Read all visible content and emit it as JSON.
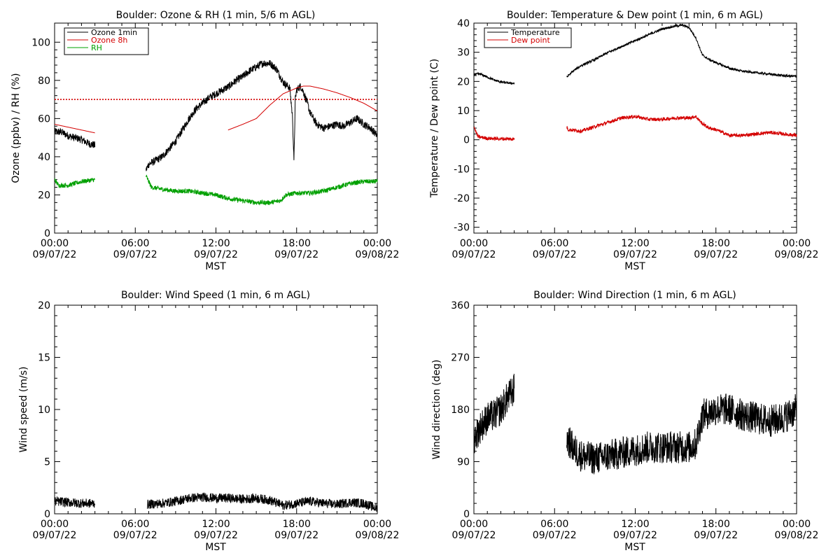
{
  "chart_data": [
    {
      "id": "ozone_rh",
      "type": "line",
      "title": "Boulder: Ozone & RH (1 min, 5/6 m AGL)",
      "xlabel": "MST",
      "ylabel": "Ozone (ppbv) / RH (%)",
      "xlim": [
        0,
        24
      ],
      "ylim": [
        0,
        110
      ],
      "xticks": [
        {
          "x": 0,
          "time": "00:00",
          "date": "09/07/22"
        },
        {
          "x": 6,
          "time": "06:00",
          "date": "09/07/22"
        },
        {
          "x": 12,
          "time": "12:00",
          "date": "09/07/22"
        },
        {
          "x": 18,
          "time": "18:00",
          "date": "09/07/22"
        },
        {
          "x": 24,
          "time": "00:00",
          "date": "09/08/22"
        }
      ],
      "yticks": [
        "0",
        "20",
        "40",
        "60",
        "80",
        "100"
      ],
      "legend_position": "top-left",
      "hline": {
        "y": 70,
        "color": "#d40000",
        "style": "dotted"
      },
      "series": [
        {
          "name": "Ozone 1min",
          "color": "#000000",
          "noise": 2.0,
          "segments": [
            [
              [
                0,
                53
              ],
              [
                0.5,
                53
              ],
              [
                1,
                51
              ],
              [
                1.5,
                50
              ],
              [
                2,
                49
              ],
              [
                2.5,
                47
              ],
              [
                3,
                46
              ]
            ],
            [
              [
                6.8,
                33
              ],
              [
                7,
                36
              ],
              [
                7.5,
                38
              ],
              [
                8,
                40
              ],
              [
                8.5,
                44
              ],
              [
                9,
                48
              ],
              [
                9.5,
                54
              ],
              [
                10,
                60
              ],
              [
                10.5,
                65
              ],
              [
                11,
                68
              ],
              [
                11.5,
                71
              ],
              [
                12,
                73
              ],
              [
                12.5,
                75
              ],
              [
                13,
                77
              ],
              [
                13.5,
                80
              ],
              [
                14,
                82
              ],
              [
                14.5,
                85
              ],
              [
                15,
                87
              ],
              [
                15.5,
                89
              ],
              [
                16,
                89
              ],
              [
                16.5,
                86
              ],
              [
                17,
                79
              ],
              [
                17.5,
                76
              ],
              [
                17.7,
                60
              ],
              [
                17.8,
                37
              ],
              [
                17.9,
                70
              ],
              [
                18,
                75
              ],
              [
                18.3,
                77
              ],
              [
                18.5,
                74
              ],
              [
                18.8,
                68
              ],
              [
                19,
                63
              ],
              [
                19.5,
                57
              ],
              [
                20,
                55
              ],
              [
                20.5,
                56
              ],
              [
                21,
                57
              ],
              [
                21.5,
                56
              ],
              [
                22,
                58
              ],
              [
                22.5,
                60
              ],
              [
                23,
                57
              ],
              [
                23.5,
                55
              ],
              [
                24,
                51
              ]
            ]
          ]
        },
        {
          "name": "Ozone 8h",
          "color": "#d40000",
          "noise": 0,
          "segments": [
            [
              [
                0,
                57
              ],
              [
                1,
                55.5
              ],
              [
                2,
                54
              ],
              [
                3,
                52.5
              ]
            ],
            [
              [
                12.9,
                54
              ],
              [
                14,
                57
              ],
              [
                15,
                60
              ],
              [
                16,
                67
              ],
              [
                17,
                73
              ],
              [
                18,
                76
              ],
              [
                18.5,
                77
              ],
              [
                19,
                77
              ],
              [
                20,
                75.5
              ],
              [
                21,
                73.5
              ],
              [
                22,
                71
              ],
              [
                23,
                68
              ],
              [
                24,
                64
              ]
            ]
          ]
        },
        {
          "name": "RH",
          "color": "#00a000",
          "noise": 1.2,
          "segments": [
            [
              [
                0,
                28
              ],
              [
                0.3,
                25
              ],
              [
                1,
                25
              ],
              [
                2,
                27
              ],
              [
                3,
                28
              ]
            ],
            [
              [
                6.8,
                30
              ],
              [
                7.2,
                24
              ],
              [
                8,
                23
              ],
              [
                9,
                22
              ],
              [
                10,
                22
              ],
              [
                11,
                21
              ],
              [
                12,
                20
              ],
              [
                13,
                18
              ],
              [
                14,
                17
              ],
              [
                15,
                16
              ],
              [
                16,
                16
              ],
              [
                16.8,
                17
              ],
              [
                17.2,
                20
              ],
              [
                18,
                21
              ],
              [
                19,
                21
              ],
              [
                20,
                22
              ],
              [
                21,
                24
              ],
              [
                22,
                26
              ],
              [
                23,
                27
              ],
              [
                24,
                27
              ]
            ]
          ]
        }
      ]
    },
    {
      "id": "temp_dew",
      "type": "line",
      "title": "Boulder: Temperature & Dew point (1 min, 6 m AGL)",
      "xlabel": "MST",
      "ylabel": "Temperature / Dew point (C)",
      "xlim": [
        0,
        24
      ],
      "ylim": [
        -32,
        40
      ],
      "xticks": [
        {
          "x": 0,
          "time": "00:00",
          "date": "09/07/22"
        },
        {
          "x": 6,
          "time": "06:00",
          "date": "09/07/22"
        },
        {
          "x": 12,
          "time": "12:00",
          "date": "09/07/22"
        },
        {
          "x": 18,
          "time": "18:00",
          "date": "09/07/22"
        },
        {
          "x": 24,
          "time": "00:00",
          "date": "09/08/22"
        }
      ],
      "yticks": [
        "-30",
        "-20",
        "-10",
        "0",
        "10",
        "20",
        "30",
        "40"
      ],
      "legend_position": "top-left",
      "series": [
        {
          "name": "Temperature",
          "color": "#000000",
          "noise": 0.4,
          "segments": [
            [
              [
                0,
                22.5
              ],
              [
                0.5,
                22.5
              ],
              [
                1,
                21.5
              ],
              [
                1.5,
                20.5
              ],
              [
                2,
                19.8
              ],
              [
                2.5,
                19.5
              ],
              [
                3,
                19.3
              ]
            ],
            [
              [
                6.9,
                21.5
              ],
              [
                7.5,
                24
              ],
              [
                8,
                25.5
              ],
              [
                9,
                27.5
              ],
              [
                10,
                30
              ],
              [
                11,
                32
              ],
              [
                12,
                34
              ],
              [
                13,
                36
              ],
              [
                14,
                38
              ],
              [
                15,
                39
              ],
              [
                15.5,
                39.3
              ],
              [
                16,
                38.5
              ],
              [
                16.5,
                35
              ],
              [
                17,
                29
              ],
              [
                17.5,
                27.5
              ],
              [
                18,
                26.5
              ],
              [
                19,
                24.5
              ],
              [
                20,
                23.5
              ],
              [
                21,
                23
              ],
              [
                22,
                22.5
              ],
              [
                23,
                22
              ],
              [
                24,
                21.7
              ]
            ]
          ]
        },
        {
          "name": "Dew point",
          "color": "#d40000",
          "noise": 0.6,
          "segments": [
            [
              [
                0,
                4.5
              ],
              [
                0.3,
                1
              ],
              [
                1,
                0.5
              ],
              [
                2,
                0.3
              ],
              [
                3,
                0.3
              ]
            ],
            [
              [
                6.9,
                4.5
              ],
              [
                7,
                3.5
              ],
              [
                8,
                3
              ],
              [
                9,
                4.5
              ],
              [
                10,
                6
              ],
              [
                11,
                7.5
              ],
              [
                12,
                8
              ],
              [
                13,
                7
              ],
              [
                14,
                7
              ],
              [
                15,
                7.5
              ],
              [
                16,
                7.5
              ],
              [
                16.5,
                8
              ],
              [
                17,
                5.5
              ],
              [
                17.5,
                4
              ],
              [
                18,
                3.5
              ],
              [
                19,
                1.5
              ],
              [
                20,
                1.5
              ],
              [
                21,
                2
              ],
              [
                22,
                2.5
              ],
              [
                23,
                2
              ],
              [
                24,
                1.5
              ]
            ]
          ]
        }
      ]
    },
    {
      "id": "wind_speed",
      "type": "line",
      "title": "Boulder: Wind Speed (1 min, 6 m AGL)",
      "xlabel": "MST",
      "ylabel": "Wind speed (m/s)",
      "xlim": [
        0,
        24
      ],
      "ylim": [
        0,
        20
      ],
      "xticks": [
        {
          "x": 0,
          "time": "00:00",
          "date": "09/07/22"
        },
        {
          "x": 6,
          "time": "06:00",
          "date": "09/07/22"
        },
        {
          "x": 12,
          "time": "12:00",
          "date": "09/07/22"
        },
        {
          "x": 18,
          "time": "18:00",
          "date": "09/07/22"
        },
        {
          "x": 24,
          "time": "00:00",
          "date": "09/08/22"
        }
      ],
      "yticks": [
        "0",
        "5",
        "10",
        "15",
        "20"
      ],
      "series": [
        {
          "name": "",
          "color": "#000000",
          "noise": 0.45,
          "segments": [
            [
              [
                0,
                1.2
              ],
              [
                1,
                1.1
              ],
              [
                2,
                1.0
              ],
              [
                3,
                1.0
              ]
            ],
            [
              [
                6.9,
                0.9
              ],
              [
                8,
                1.0
              ],
              [
                9,
                1.2
              ],
              [
                10,
                1.5
              ],
              [
                11,
                1.6
              ],
              [
                12,
                1.5
              ],
              [
                13,
                1.5
              ],
              [
                14,
                1.4
              ],
              [
                15,
                1.5
              ],
              [
                16,
                1.3
              ],
              [
                17,
                0.8
              ],
              [
                18,
                1.0
              ],
              [
                19,
                1.2
              ],
              [
                20,
                1.0
              ],
              [
                21,
                0.9
              ],
              [
                22,
                1.1
              ],
              [
                23,
                1.0
              ],
              [
                24,
                0.5
              ]
            ]
          ]
        }
      ]
    },
    {
      "id": "wind_dir",
      "type": "line",
      "title": "Boulder: Wind Direction (1 min, 6 m AGL)",
      "xlabel": "MST",
      "ylabel": "Wind direction (deg)",
      "xlim": [
        0,
        24
      ],
      "ylim": [
        0,
        360
      ],
      "xticks": [
        {
          "x": 0,
          "time": "00:00",
          "date": "09/07/22"
        },
        {
          "x": 6,
          "time": "06:00",
          "date": "09/07/22"
        },
        {
          "x": 12,
          "time": "12:00",
          "date": "09/07/22"
        },
        {
          "x": 18,
          "time": "18:00",
          "date": "09/07/22"
        },
        {
          "x": 24,
          "time": "00:00",
          "date": "09/08/22"
        }
      ],
      "yticks": [
        "0",
        "90",
        "180",
        "270",
        "360"
      ],
      "series": [
        {
          "name": "",
          "color": "#000000",
          "noise": 28,
          "segments": [
            [
              [
                0,
                130
              ],
              [
                0.5,
                150
              ],
              [
                1,
                165
              ],
              [
                1.5,
                170
              ],
              [
                2,
                180
              ],
              [
                2.5,
                200
              ],
              [
                3,
                215
              ]
            ],
            [
              [
                6.9,
                130
              ],
              [
                7.5,
                110
              ],
              [
                8,
                100
              ],
              [
                9,
                95
              ],
              [
                10,
                100
              ],
              [
                11,
                105
              ],
              [
                12,
                110
              ],
              [
                13,
                115
              ],
              [
                14,
                115
              ],
              [
                15,
                115
              ],
              [
                16,
                115
              ],
              [
                16.5,
                120
              ],
              [
                17,
                170
              ],
              [
                18,
                180
              ],
              [
                19,
                180
              ],
              [
                20,
                170
              ],
              [
                21,
                165
              ],
              [
                22,
                160
              ],
              [
                23,
                165
              ],
              [
                24,
                180
              ]
            ]
          ]
        }
      ]
    }
  ]
}
